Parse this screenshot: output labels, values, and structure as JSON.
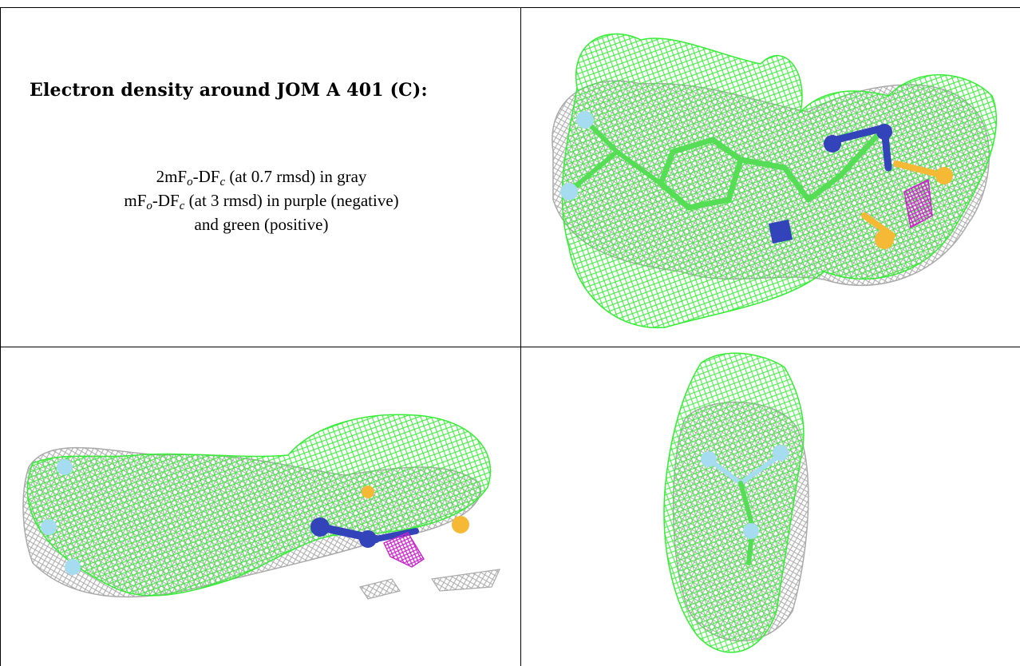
{
  "caption": {
    "title": "Electron density around JOM A 401 (C):",
    "line1": {
      "pre": "2mF",
      "sub1": "o",
      "mid": "-DF",
      "sub2": "c",
      "post": " (at 0.7 rmsd) in gray"
    },
    "line2": {
      "pre": "mF",
      "sub1": "o",
      "mid": "-DF",
      "sub2": "c",
      "post": " (at 3 rmsd) in purple (negative)"
    },
    "line3": "and green (positive)"
  },
  "colors": {
    "positive_density": "#33ee33",
    "negative_density": "#cc22cc",
    "twofofc_density": "#aaaaaa",
    "nitrogen": "#3344bb",
    "sulfur": "#f5b935",
    "fluorine": "#a6dcef",
    "carbon": "#55dd55"
  },
  "panels": [
    {
      "name": "view-1"
    },
    {
      "name": "view-2"
    },
    {
      "name": "view-3"
    }
  ]
}
